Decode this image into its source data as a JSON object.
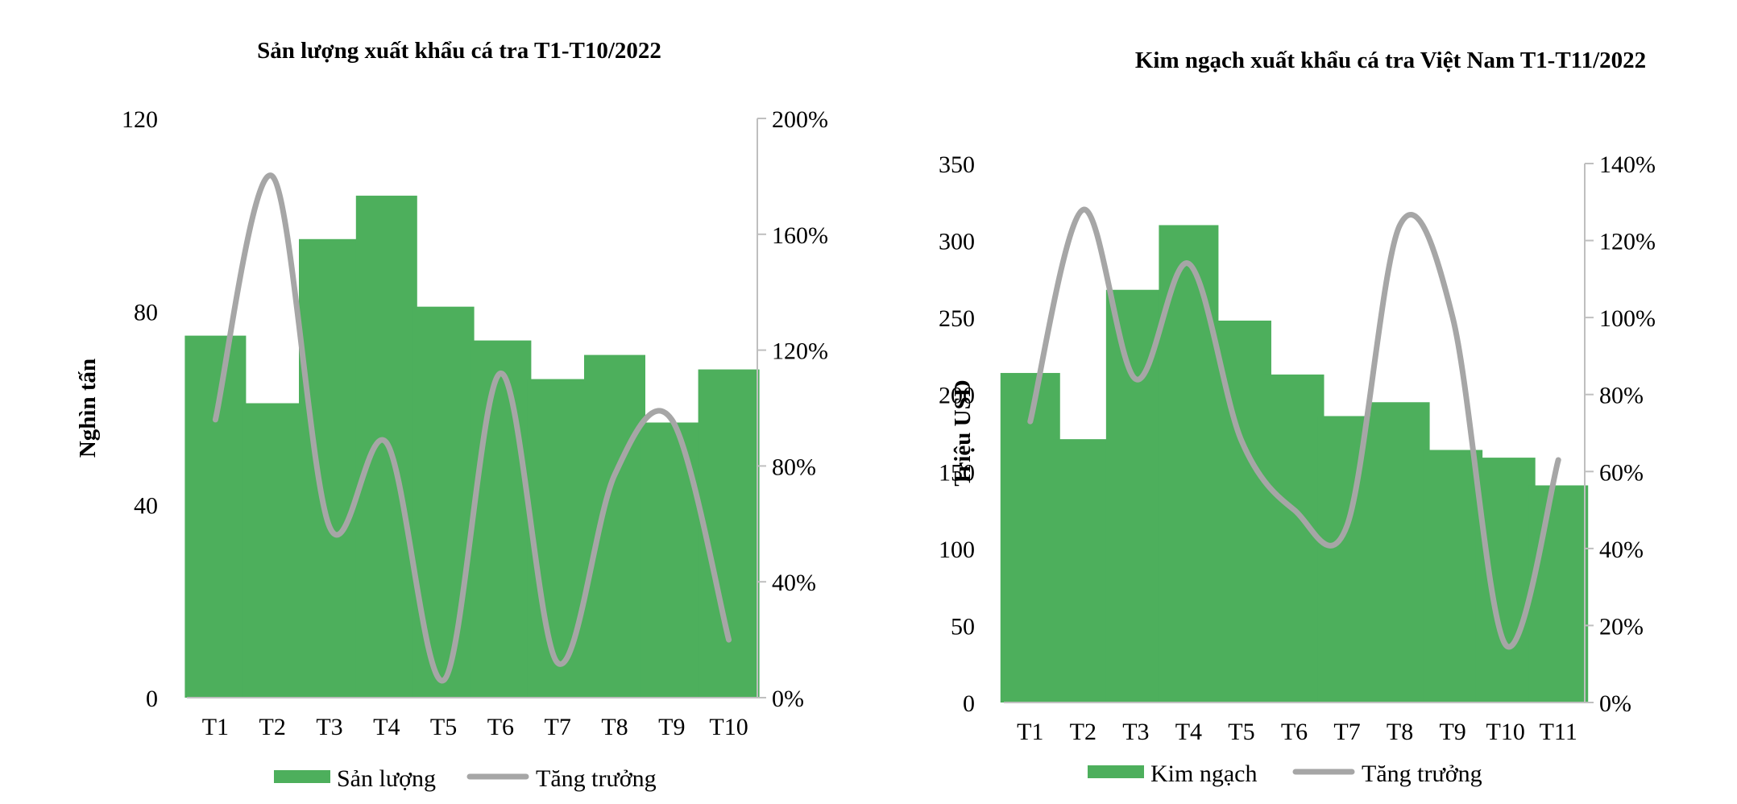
{
  "chart_data": [
    {
      "type": "bar+line",
      "title": "Sản lượng xuất khẩu cá tra T1-T10/2022",
      "xlabel": "",
      "ylabel": "Nghìn tấn",
      "categories": [
        "T1",
        "T2",
        "T3",
        "T4",
        "T5",
        "T6",
        "T7",
        "T8",
        "T9",
        "T10"
      ],
      "ylim": [
        0,
        120
      ],
      "yticks": [
        "0",
        "40",
        "80",
        "120"
      ],
      "y2lim": [
        0,
        2.0
      ],
      "y2ticks": [
        "0%",
        "40%",
        "80%",
        "120%",
        "160%",
        "200%"
      ],
      "series": [
        {
          "name": "Sản lượng",
          "kind": "bar",
          "axis": "left",
          "color": "#4daf5c",
          "values": [
            75,
            61,
            95,
            104,
            81,
            74,
            66,
            71,
            57,
            68
          ]
        },
        {
          "name": "Tăng trưởng",
          "kind": "line",
          "axis": "right",
          "color": "#a6a6a6",
          "values": [
            0.96,
            1.8,
            0.59,
            0.88,
            0.06,
            1.12,
            0.12,
            0.77,
            0.96,
            0.2
          ]
        }
      ],
      "legend": "bottom"
    },
    {
      "type": "bar+line",
      "title": "Kim ngạch xuất khẩu cá tra Việt Nam T1-T11/2022",
      "xlabel": "",
      "ylabel": "Triệu USD",
      "categories": [
        "T1",
        "T2",
        "T3",
        "T4",
        "T5",
        "T6",
        "T7",
        "T8",
        "T9",
        "T10",
        "T11"
      ],
      "ylim": [
        0,
        350
      ],
      "yticks": [
        "0",
        "50",
        "100",
        "150",
        "200",
        "250",
        "300",
        "350"
      ],
      "y2lim": [
        0,
        1.4
      ],
      "y2ticks": [
        "0%",
        "20%",
        "40%",
        "60%",
        "80%",
        "100%",
        "120%",
        "140%"
      ],
      "series": [
        {
          "name": "Kim ngạch",
          "kind": "bar",
          "axis": "left",
          "color": "#4daf5c",
          "values": [
            214,
            171,
            268,
            310,
            248,
            213,
            186,
            195,
            164,
            159,
            141
          ]
        },
        {
          "name": "Tăng trưởng",
          "kind": "line",
          "axis": "right",
          "color": "#a6a6a6",
          "values": [
            0.73,
            1.28,
            0.84,
            1.14,
            0.68,
            0.5,
            0.46,
            1.24,
            1.0,
            0.15,
            0.63
          ]
        }
      ],
      "legend": "bottom"
    }
  ]
}
